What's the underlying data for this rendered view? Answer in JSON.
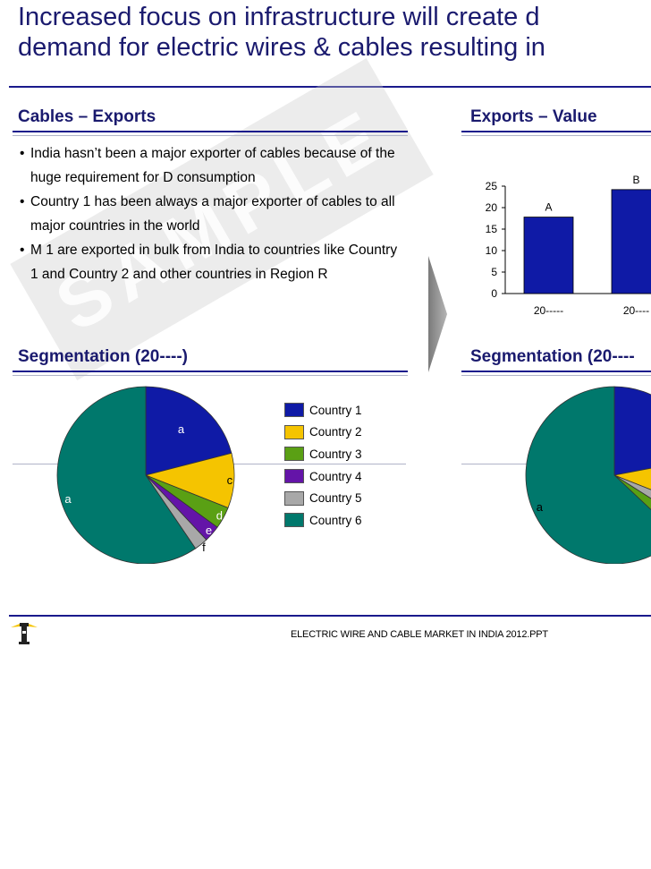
{
  "title": {
    "line1": "Increased focus on infrastructure will create d",
    "line2": "demand for electric wires & cables resulting in"
  },
  "left": {
    "exports_heading": "Cables  – Exports",
    "bullets": [
      "India hasn’t been a major exporter of cables because of the huge requirement for D consumption",
      "Country 1 has been always a major exporter of cables to all major countries in the world",
      "M 1 are exported in bulk from India to countries like Country 1 and Country 2 and other countries in Region R"
    ],
    "watermark": "SAMPLE",
    "segmentation_heading": "Segmentation (20----)"
  },
  "right": {
    "exports_value_heading": "Exports – Value",
    "segmentation_heading": "Segmentation (20----"
  },
  "chart_data": [
    {
      "type": "bar",
      "title": "Exports – Value",
      "categories": [
        "20-----",
        "20----"
      ],
      "values": [
        17.8,
        24.2
      ],
      "data_labels": [
        "A",
        "B"
      ],
      "y_ticks": [
        "0",
        "5",
        "10",
        "15",
        "20",
        "25"
      ],
      "ylim": [
        0,
        25
      ],
      "grid": false,
      "bar_color": "#0f1aa6"
    },
    {
      "type": "pie",
      "title": "Segmentation (20----)",
      "slices": [
        {
          "label": "a",
          "series": "Country 1",
          "value": 21,
          "color": "#0f1aa6"
        },
        {
          "label": "c",
          "series": "Country 2",
          "value": 10,
          "color": "#f5c400"
        },
        {
          "label": "d",
          "series": "Country 3",
          "value": 4,
          "color": "#5aa014"
        },
        {
          "label": "e",
          "series": "Country 4",
          "value": 3,
          "color": "#6414a8"
        },
        {
          "label": "f",
          "series": "Country 5",
          "value": 2.5,
          "color": "#a8a8a8"
        },
        {
          "label": "a",
          "series": "Country 6",
          "value": 59.5,
          "color": "#00786c"
        }
      ],
      "legend": [
        "Country 1",
        "Country 2",
        "Country 3",
        "Country 4",
        "Country 5",
        "Country 6"
      ],
      "legend_position": "right"
    },
    {
      "type": "pie",
      "title": "Segmentation (20----",
      "slices": [
        {
          "series": "Country 1",
          "value": 22,
          "color": "#0f1aa6"
        },
        {
          "series": "Country 2",
          "value": 9,
          "color": "#f5c400"
        },
        {
          "series": "Country 5",
          "value": 3,
          "color": "#a8a8a8"
        },
        {
          "series": "Country 3",
          "value": 3,
          "color": "#5aa014"
        },
        {
          "series": "Country 6",
          "value": 63,
          "color": "#00786c",
          "label": "a"
        }
      ]
    }
  ],
  "footer": {
    "text": "ELECTRIC WIRE AND CABLE MARKET IN INDIA 2012.PPT",
    "logo_icon": "lighthouse-icon"
  }
}
